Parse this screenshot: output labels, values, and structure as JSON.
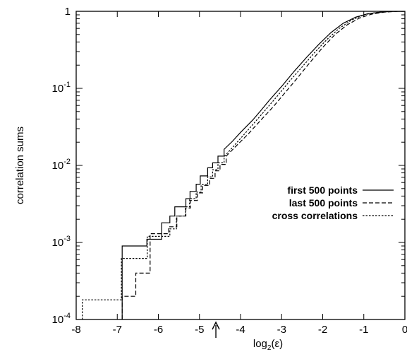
{
  "chart_data": {
    "type": "line",
    "title": "",
    "xlabel": "log2(ε)",
    "ylabel": "correlation sums",
    "x_scale": "linear",
    "y_scale": "log",
    "xlim": [
      -8,
      0
    ],
    "ylim": [
      0.0001,
      1
    ],
    "x_ticks": [
      -8,
      -7,
      -6,
      -5,
      -4,
      -3,
      -2,
      -1,
      0
    ],
    "x_tick_labels": [
      "-8",
      "-7",
      "-6",
      "-5",
      "-4",
      "-3",
      "-2",
      "-1",
      "0"
    ],
    "y_ticks": [
      0.0001,
      0.001,
      0.01,
      0.1,
      1
    ],
    "y_tick_labels": [
      {
        "base": "10",
        "exp": "-4"
      },
      {
        "base": "10",
        "exp": "-3"
      },
      {
        "base": "10",
        "exp": "-2"
      },
      {
        "base": "10",
        "exp": "-1"
      },
      {
        "base": "1",
        "exp": ""
      }
    ],
    "grid": false,
    "legend_position": "right",
    "annotations": [
      {
        "type": "arrow",
        "x": -4.6,
        "direction": "up"
      }
    ],
    "series": [
      {
        "name": "first 500 points",
        "style": "solid",
        "x": [
          -6.88,
          -6.88,
          -6.28,
          -6.28,
          -5.92,
          -5.92,
          -5.72,
          -5.72,
          -5.6,
          -5.6,
          -5.33,
          -5.33,
          -5.23,
          -5.23,
          -5.08,
          -5.08,
          -4.98,
          -4.98,
          -4.8,
          -4.8,
          -4.68,
          -4.68,
          -4.55,
          -4.55,
          -4.4,
          -4.4,
          -4.2,
          -4.0,
          -3.7,
          -3.5,
          -3.3,
          -3.0,
          -2.7,
          -2.4,
          -2.1,
          -1.8,
          -1.5,
          -1.2,
          -0.9,
          -0.6,
          -0.3,
          0
        ],
        "y": [
          0.0001,
          0.0009,
          0.0009,
          0.0011,
          0.0011,
          0.0018,
          0.0018,
          0.0022,
          0.0022,
          0.0029,
          0.0029,
          0.0037,
          0.0037,
          0.0046,
          0.0046,
          0.0057,
          0.0057,
          0.0073,
          0.0073,
          0.0093,
          0.0093,
          0.0108,
          0.0108,
          0.0132,
          0.0132,
          0.0162,
          0.0205,
          0.0268,
          0.039,
          0.052,
          0.07,
          0.106,
          0.165,
          0.25,
          0.37,
          0.53,
          0.7,
          0.84,
          0.93,
          0.975,
          0.995,
          1.0
        ]
      },
      {
        "name": "last 500 points",
        "style": "dashed",
        "x": [
          -6.88,
          -6.88,
          -6.55,
          -6.55,
          -6.2,
          -6.2,
          -5.75,
          -5.75,
          -5.55,
          -5.55,
          -5.33,
          -5.33,
          -5.22,
          -5.22,
          -5.05,
          -5.05,
          -4.92,
          -4.92,
          -4.75,
          -4.75,
          -4.62,
          -4.62,
          -4.5,
          -4.5,
          -4.35,
          -4.35,
          -4.1,
          -3.8,
          -3.5,
          -3.2,
          -2.9,
          -2.6,
          -2.3,
          -2.0,
          -1.7,
          -1.4,
          -1.1,
          -0.8,
          -0.5,
          -0.2,
          0
        ],
        "y": [
          0.0001,
          0.0002,
          0.0002,
          0.0004,
          0.0004,
          0.0013,
          0.0013,
          0.0016,
          0.0016,
          0.0022,
          0.0022,
          0.0028,
          0.0028,
          0.0035,
          0.0035,
          0.0044,
          0.0044,
          0.0055,
          0.0055,
          0.0068,
          0.0068,
          0.0085,
          0.0085,
          0.0103,
          0.0103,
          0.0132,
          0.018,
          0.026,
          0.039,
          0.058,
          0.09,
          0.14,
          0.22,
          0.34,
          0.5,
          0.67,
          0.82,
          0.92,
          0.975,
          0.997,
          1.0
        ]
      },
      {
        "name": "cross correlations",
        "style": "dotted",
        "x": [
          -7.85,
          -7.85,
          -6.9,
          -6.9,
          -6.27,
          -6.27,
          -5.72,
          -5.72,
          -5.56,
          -5.56,
          -5.34,
          -5.34,
          -5.24,
          -5.24,
          -5.08,
          -5.08,
          -4.96,
          -4.96,
          -4.8,
          -4.8,
          -4.68,
          -4.68,
          -4.55,
          -4.55,
          -4.4,
          -4.4,
          -4.2,
          -3.95,
          -3.7,
          -3.4,
          -3.1,
          -2.8,
          -2.5,
          -2.2,
          -1.9,
          -1.6,
          -1.3,
          -1.0,
          -0.7,
          -0.4,
          -0.15,
          0
        ],
        "y": [
          0.0001,
          0.00018,
          0.00018,
          0.00062,
          0.00062,
          0.0012,
          0.0012,
          0.0015,
          0.0015,
          0.0022,
          0.0022,
          0.0029,
          0.0029,
          0.0037,
          0.0037,
          0.0045,
          0.0045,
          0.0056,
          0.0056,
          0.0071,
          0.0071,
          0.0088,
          0.0088,
          0.0108,
          0.0108,
          0.013,
          0.017,
          0.024,
          0.034,
          0.052,
          0.08,
          0.125,
          0.19,
          0.29,
          0.43,
          0.6,
          0.77,
          0.9,
          0.965,
          0.993,
          0.999,
          1.0
        ]
      }
    ]
  }
}
